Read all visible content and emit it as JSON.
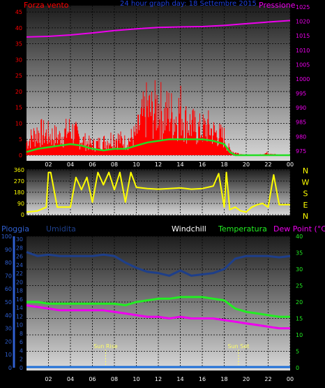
{
  "colors": {
    "background": "#000000",
    "grid": "#000000",
    "wind": "#ff0000",
    "wind_avg": "#22dd22",
    "pressure": "#ee00ee",
    "direction": "#ffff00",
    "rain": "#1e6fd8",
    "humidity": "#1e3f8a",
    "temperature": "#22ee22",
    "dewpoint": "#ee00ee",
    "windchill": "#ffffff",
    "axis_blue": "#2f5fd0",
    "sun": "#ffff66"
  },
  "chart_data": [
    {
      "type": "line",
      "panel": "wind-pressure",
      "title": "24 hour graph day: 18 Settembre 2015",
      "left_label": "Forza vento",
      "right_label": "Pressione",
      "x_ticks": [
        "02",
        "04",
        "06",
        "08",
        "10",
        "12",
        "14",
        "16",
        "18",
        "20",
        "22",
        "00"
      ],
      "left_ticks": [
        "0",
        "5",
        "10",
        "15",
        "20",
        "25",
        "30",
        "35",
        "40",
        "45"
      ],
      "right_ticks": [
        "975",
        "980",
        "985",
        "990",
        "995",
        "1000",
        "1005",
        "1010",
        "1015",
        "1020",
        "1025"
      ],
      "ylim_left": [
        0,
        47
      ],
      "ylim_right": [
        973.5,
        1025.5
      ],
      "series": [
        {
          "id": "wind_gust",
          "x": [
            0,
            1,
            2,
            3,
            4,
            5,
            6,
            7,
            8,
            9,
            10,
            10.5,
            11,
            11.5,
            12,
            12.5,
            13,
            13.5,
            14,
            14.5,
            15,
            15.5,
            16,
            16.5,
            17,
            17.5,
            18,
            18.5,
            19,
            20,
            21,
            22,
            23,
            24
          ],
          "values": [
            5,
            9,
            8,
            7,
            10,
            6,
            4,
            5,
            7,
            5,
            8,
            14,
            18,
            16,
            20,
            15,
            17,
            14,
            18,
            13,
            12,
            10,
            10,
            11,
            9,
            8,
            7,
            2,
            1,
            0,
            0,
            1,
            0,
            0
          ]
        },
        {
          "id": "wind_avg",
          "x": [
            0,
            1,
            2,
            3,
            4,
            5,
            6,
            7,
            8,
            9,
            10,
            11,
            12,
            13,
            14,
            15,
            16,
            17,
            18,
            18.5,
            19,
            20,
            22,
            24
          ],
          "values": [
            1,
            2,
            2.5,
            3,
            3.5,
            3,
            2,
            1.5,
            2,
            2,
            3,
            4,
            4.5,
            5,
            5,
            5,
            5,
            4.5,
            3.5,
            1,
            0,
            0,
            0,
            0
          ]
        },
        {
          "id": "pressure",
          "x": [
            0,
            2,
            4,
            6,
            8,
            10,
            12,
            14,
            16,
            18,
            20,
            22,
            24
          ],
          "values": [
            1014.6,
            1014.8,
            1015.3,
            1016,
            1016.8,
            1017.4,
            1017.9,
            1018.1,
            1018.2,
            1018.6,
            1019.2,
            1019.8,
            1020.3
          ]
        }
      ]
    },
    {
      "type": "line",
      "panel": "wind-direction",
      "left_ticks": [
        "0",
        "90",
        "180",
        "270",
        "360"
      ],
      "direction_labels": [
        "N",
        "W",
        "S",
        "E",
        "N"
      ],
      "ylim": [
        0,
        360
      ],
      "series": [
        {
          "id": "direction",
          "x": [
            0,
            1,
            1.8,
            2,
            2.2,
            2.8,
            3,
            3.5,
            4,
            4.5,
            5,
            5.5,
            6,
            6.5,
            7,
            7.5,
            8,
            8.5,
            9,
            9.5,
            10,
            11,
            12,
            13,
            14,
            15,
            16,
            17,
            17.5,
            18,
            18.2,
            18.5,
            19,
            19.5,
            20,
            20.5,
            21,
            21.5,
            22,
            22.5,
            23,
            24
          ],
          "values": [
            20,
            30,
            60,
            340,
            340,
            60,
            60,
            60,
            60,
            300,
            200,
            300,
            100,
            340,
            240,
            340,
            200,
            340,
            100,
            340,
            220,
            210,
            205,
            210,
            215,
            205,
            210,
            230,
            330,
            60,
            340,
            40,
            60,
            30,
            20,
            60,
            80,
            90,
            60,
            320,
            80,
            80
          ]
        }
      ]
    },
    {
      "type": "line",
      "panel": "weather",
      "labels": {
        "rain": "Pioggia",
        "humidity": "Umidita",
        "windchill": "Windchill",
        "temperature": "Temperatura",
        "dewpoint": "Dew Point (°C)"
      },
      "left_outer_ticks": [
        "0",
        "10",
        "20",
        "30",
        "40",
        "50",
        "60",
        "70",
        "80",
        "90",
        "100"
      ],
      "left_inner_ticks": [
        "0",
        "2",
        "4",
        "6",
        "8",
        "10",
        "12",
        "14",
        "16",
        "18",
        "20",
        "22",
        "24",
        "26",
        "28",
        "30"
      ],
      "right_ticks": [
        "0",
        "5",
        "10",
        "15",
        "20",
        "25",
        "30",
        "35",
        "40"
      ],
      "ylim_temp": [
        0,
        40
      ],
      "ylim_humidity": [
        0,
        100
      ],
      "sun_rise_label": "Sun Rise",
      "sun_set_label": "Sun Set",
      "sun_rise_hour": 7.2,
      "sun_set_hour": 19.3,
      "series": [
        {
          "id": "humidity",
          "x": [
            0,
            1,
            2,
            3,
            4,
            5,
            6,
            7,
            8,
            9,
            10,
            11,
            12,
            13,
            14,
            15,
            16,
            17,
            18,
            19,
            20,
            21,
            22,
            23,
            24
          ],
          "values": [
            88,
            85,
            86,
            85,
            85,
            85,
            85,
            86,
            85,
            80,
            76,
            73,
            72,
            70,
            74,
            70,
            71,
            72,
            75,
            83,
            85,
            85,
            85,
            84,
            85
          ]
        },
        {
          "id": "temperature",
          "x": [
            0,
            1,
            2,
            3,
            4,
            5,
            6,
            7,
            8,
            9,
            10,
            11,
            12,
            13,
            14,
            15,
            16,
            17,
            18,
            19,
            20,
            21,
            22,
            23,
            24
          ],
          "values": [
            20,
            20,
            19.5,
            19.5,
            19.5,
            19.5,
            19.5,
            19.5,
            19.5,
            19,
            20,
            20.5,
            21,
            21,
            21.5,
            21.5,
            21.5,
            21,
            20.5,
            18,
            17,
            16.5,
            16,
            15.5,
            15.5
          ]
        },
        {
          "id": "dewpoint",
          "x": [
            0,
            1,
            2,
            3,
            4,
            5,
            6,
            7,
            8,
            9,
            10,
            11,
            12,
            13,
            14,
            15,
            16,
            17,
            18,
            19,
            20,
            21,
            22,
            23,
            24
          ],
          "values": [
            19,
            18.5,
            18,
            17.5,
            17.5,
            17.5,
            17.5,
            17.5,
            17,
            16.5,
            16,
            15.5,
            15.5,
            15,
            15.5,
            15,
            15,
            15,
            14.5,
            14,
            13.5,
            13,
            12.5,
            12,
            12
          ]
        },
        {
          "id": "rain",
          "x": [
            0,
            24
          ],
          "values": [
            0,
            0
          ]
        }
      ]
    }
  ]
}
